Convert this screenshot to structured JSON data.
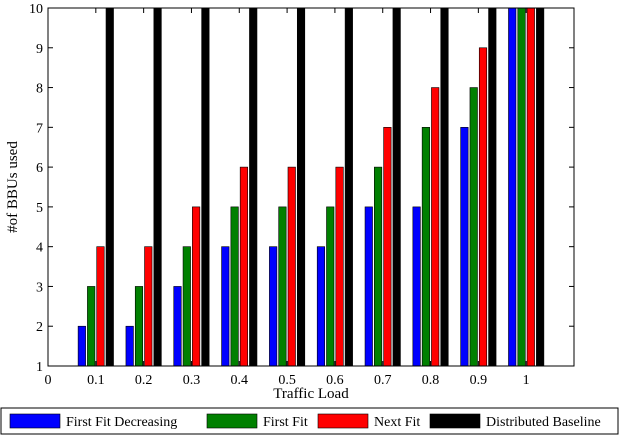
{
  "chart_data": {
    "type": "bar",
    "title": "",
    "xlabel": "Traffic Load",
    "ylabel": "#of BBUs used",
    "categories": [
      "0.1",
      "0.2",
      "0.3",
      "0.4",
      "0.5",
      "0.6",
      "0.7",
      "0.8",
      "0.9",
      "1"
    ],
    "x_ticks": [
      "0",
      "0.1",
      "0.2",
      "0.3",
      "0.4",
      "0.5",
      "0.6",
      "0.7",
      "0.8",
      "0.9",
      "1"
    ],
    "y_ticks": [
      "1",
      "2",
      "3",
      "4",
      "5",
      "6",
      "7",
      "8",
      "9",
      "10"
    ],
    "ylim": [
      1,
      10
    ],
    "xlim": [
      0,
      1.1
    ],
    "grid": false,
    "legend_position": "bottom",
    "series": [
      {
        "name": "First Fit Decreasing",
        "color": "#0000ff",
        "values": [
          2,
          2,
          3,
          4,
          4,
          4,
          5,
          5,
          7,
          10
        ]
      },
      {
        "name": "First Fit",
        "color": "#008000",
        "values": [
          3,
          3,
          4,
          5,
          5,
          5,
          6,
          7,
          8,
          10
        ]
      },
      {
        "name": "Next Fit",
        "color": "#ff0000",
        "values": [
          4,
          4,
          5,
          6,
          6,
          6,
          7,
          8,
          9,
          10
        ]
      },
      {
        "name": "Distributed Baseline",
        "color": "#000000",
        "values": [
          10,
          10,
          10,
          10,
          10,
          10,
          10,
          10,
          10,
          10
        ]
      }
    ]
  }
}
